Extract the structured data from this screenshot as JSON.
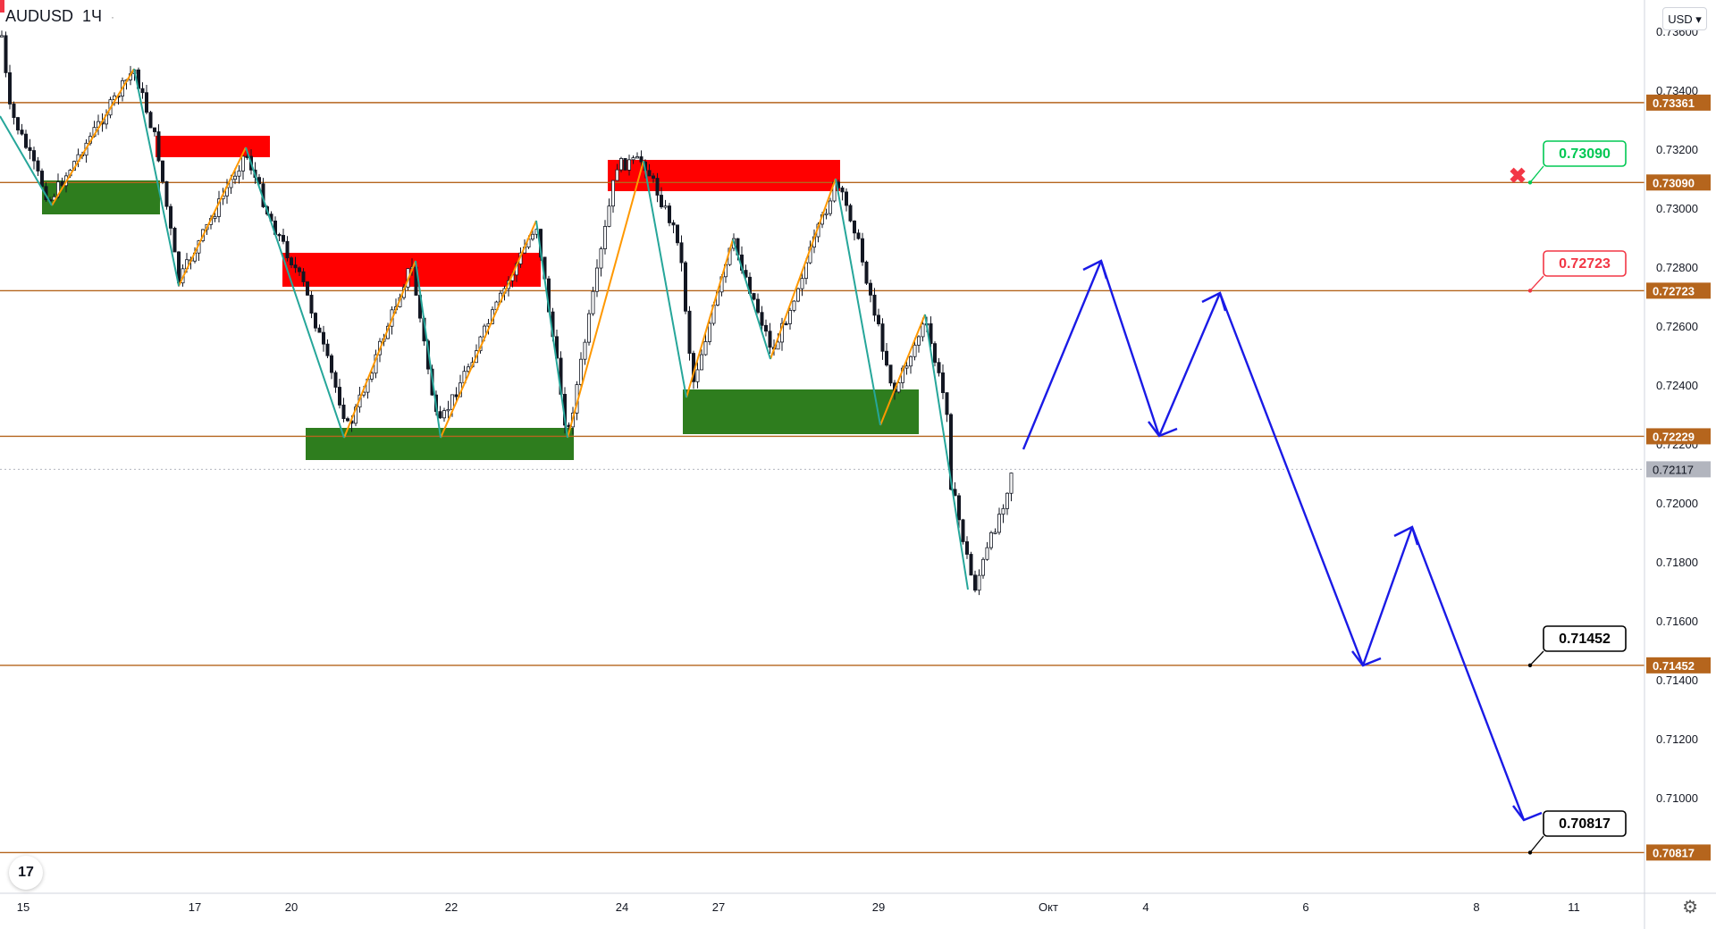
{
  "symbol": {
    "name": "AUDUSD",
    "interval": "1Ч",
    "dot": "·"
  },
  "currency_button": "USD",
  "logo_text": "17",
  "settings_icon": "gear-icon",
  "price_axis": {
    "ticks": [
      "0.73600",
      "0.73400",
      "0.73200",
      "0.73000",
      "0.72800",
      "0.72600",
      "0.72400",
      "0.72200",
      "0.72000",
      "0.71800",
      "0.71600",
      "0.71400",
      "0.71200",
      "0.71000"
    ],
    "tick_values": [
      0.736,
      0.734,
      0.732,
      0.73,
      0.728,
      0.726,
      0.724,
      0.722,
      0.72,
      0.718,
      0.716,
      0.714,
      0.712,
      0.71
    ],
    "level_labels": [
      {
        "text": "0.73361",
        "value": 0.73361
      },
      {
        "text": "0.73090",
        "value": 0.7309
      },
      {
        "text": "0.72723",
        "value": 0.72723
      },
      {
        "text": "0.72229",
        "value": 0.72229
      },
      {
        "text": "0.71452",
        "value": 0.71452
      },
      {
        "text": "0.70817",
        "value": 0.70817
      }
    ],
    "current_price": "0.72117",
    "current_value": 0.72117
  },
  "time_axis": {
    "labels": [
      "15",
      "17",
      "20",
      "22",
      "24",
      "27",
      "29",
      "Окт",
      "4",
      "6",
      "8",
      "11"
    ]
  },
  "callouts": [
    {
      "text": "0.73090",
      "color": "#00c853"
    },
    {
      "text": "0.72723",
      "color": "#f23645"
    },
    {
      "text": "0.71452",
      "color": "#000000"
    },
    {
      "text": "0.70817",
      "color": "#000000"
    }
  ],
  "colors": {
    "level_line": "#b5651d",
    "level_label_bg": "#b5651d",
    "supply_zone": "#ff0000",
    "demand_zone": "#2e7d1e",
    "zigzag_up": "#ff9800",
    "zigzag_down": "#26a69a",
    "projection": "#1a1ae6",
    "candle": "#131722",
    "cross_marker": "#f23645"
  }
}
